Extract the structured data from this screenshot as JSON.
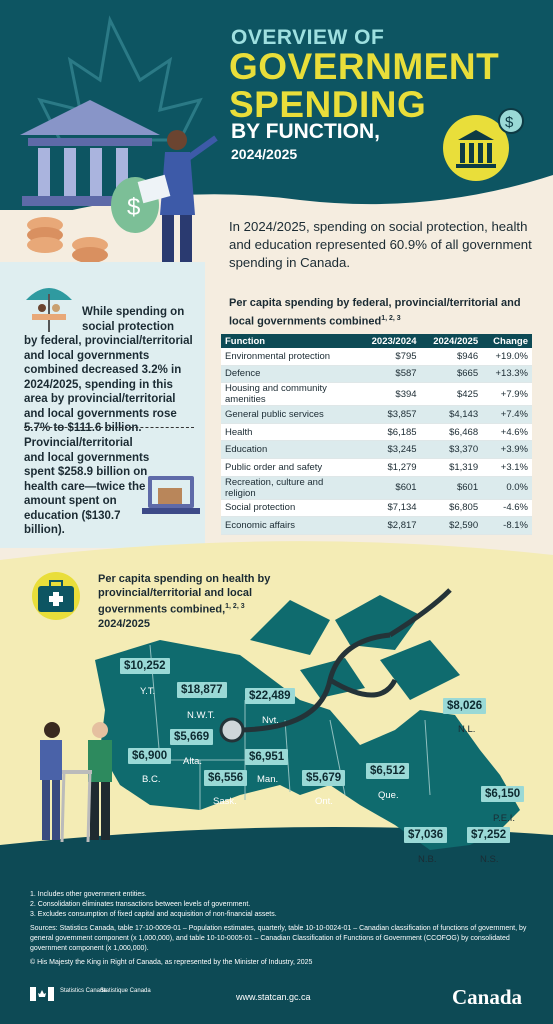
{
  "header": {
    "line1": "OVERVIEW OF",
    "line2": "GOVERNMENT SPENDING",
    "line3": "BY FUNCTION,",
    "line4": "2024/2025"
  },
  "intro": "In 2024/2025, spending on social protection, health and education represented 60.9% of all government spending in Canada.",
  "left_panel": {
    "fact1_lead": "While spending on social protection",
    "fact1_rest": "by federal, provincial/territorial and local governments combined decreased 3.2% in 2024/2025, spending in this area by provincial/territorial and local governments rose 5.7% to $111.6 billion.",
    "fact2": "Provincial/territorial and local governments spent $258.9 billion on health care—twice the amount spent on education ($130.7 billion)."
  },
  "table": {
    "title": "Per capita spending by federal, provincial/territorial and local governments combined",
    "title_sup": "1, 2, 3",
    "headers": [
      "Function",
      "2023/2024",
      "2024/2025",
      "Change"
    ],
    "rows": [
      [
        "Environmental protection",
        "$795",
        "$946",
        "+19.0%"
      ],
      [
        "Defence",
        "$587",
        "$665",
        "+13.3%"
      ],
      [
        "Housing and community amenities",
        "$394",
        "$425",
        "+7.9%"
      ],
      [
        "General public services",
        "$3,857",
        "$4,143",
        "+7.4%"
      ],
      [
        "Health",
        "$6,185",
        "$6,468",
        "+4.6%"
      ],
      [
        "Education",
        "$3,245",
        "$3,370",
        "+3.9%"
      ],
      [
        "Public order and safety",
        "$1,279",
        "$1,319",
        "+3.1%"
      ],
      [
        "Recreation, culture and religion",
        "$601",
        "$601",
        "0.0%"
      ],
      [
        "Social protection",
        "$7,134",
        "$6,805",
        "-4.6%"
      ],
      [
        "Economic affairs",
        "$2,817",
        "$2,590",
        "-8.1%"
      ]
    ]
  },
  "map": {
    "title": "Per capita spending on health by provincial/territorial and local governments combined,",
    "title_sup": "1, 2, 3",
    "year": "2024/2025",
    "provinces": [
      {
        "name": "Y.T.",
        "value": "$10,252"
      },
      {
        "name": "N.W.T.",
        "value": "$18,877"
      },
      {
        "name": "Nvt.",
        "value": "$22,489"
      },
      {
        "name": "Alta.",
        "value": "$5,669"
      },
      {
        "name": "B.C.",
        "value": "$6,900"
      },
      {
        "name": "Man.",
        "value": "$6,951"
      },
      {
        "name": "Sask.",
        "value": "$6,556"
      },
      {
        "name": "Ont.",
        "value": "$5,679"
      },
      {
        "name": "Que.",
        "value": "$6,512"
      },
      {
        "name": "N.L.",
        "value": "$8,026"
      },
      {
        "name": "P.E.I.",
        "value": "$6,150"
      },
      {
        "name": "N.B.",
        "value": "$7,036"
      },
      {
        "name": "N.S.",
        "value": "$7,252"
      }
    ]
  },
  "footer": {
    "notes": [
      "1. Includes other government entities.",
      "2. Consolidation eliminates transactions between levels of government.",
      "3. Excludes consumption of fixed capital and acquisition of non-financial assets."
    ],
    "sources": "Sources: Statistics Canada, table 17-10-0009-01 – Population estimates, quarterly, table 10-10-0024-01 – Canadian classification of functions of government, by general government component (x 1,000,000), and table 10-10-0005-01 – Canadian Classification of Functions of Government (CCOFOG) by consolidated government component (x 1,000,000).",
    "copyright": "© His Majesty the King in Right of Canada, as represented by the Minister of Industry, 2025",
    "statcan_en": "Statistics Canada",
    "statcan_fr": "Statistique Canada",
    "url": "www.statcan.gc.ca",
    "wordmark": "Canada"
  },
  "colors": {
    "teal_dark": "#0d5562",
    "yellow": "#e9de3a",
    "light_teal": "#9ad9d6",
    "map_teal": "#0f6b6e"
  }
}
